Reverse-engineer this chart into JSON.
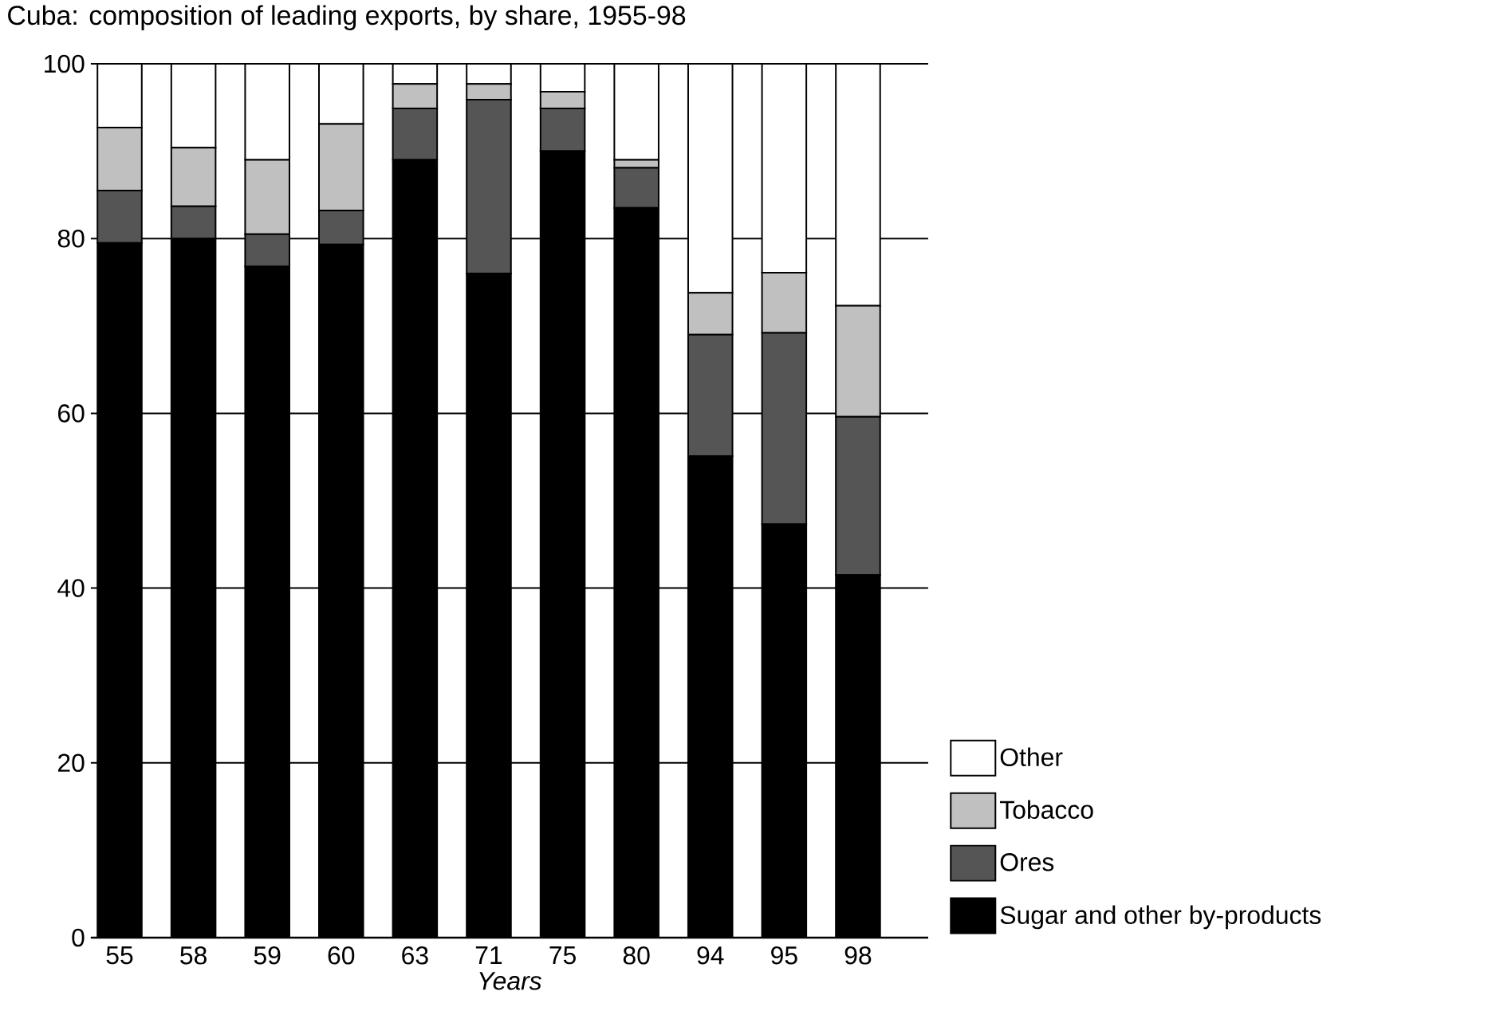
{
  "chart_data": {
    "type": "bar",
    "stacked": true,
    "title": "Cuba: composition of leading exports, by share, 1955-98",
    "xlabel": "Years",
    "categories": [
      "55",
      "58",
      "59",
      "60",
      "63",
      "71",
      "75",
      "80",
      "94",
      "95",
      "98"
    ],
    "series": [
      {
        "name": "Sugar and other by-products",
        "color": "#000000",
        "values": [
          79.5,
          80.0,
          76.8,
          79.3,
          89.0,
          76.0,
          90.0,
          83.5,
          55.1,
          47.3,
          41.5
        ]
      },
      {
        "name": "Ores",
        "color": "#555555",
        "values": [
          6.0,
          3.7,
          3.7,
          3.9,
          5.9,
          19.9,
          4.9,
          4.6,
          13.9,
          21.9,
          18.1
        ]
      },
      {
        "name": "Tobacco",
        "color": "#c0c0c0",
        "values": [
          7.2,
          6.7,
          8.5,
          9.9,
          2.8,
          1.8,
          1.9,
          0.9,
          4.8,
          6.9,
          12.7
        ]
      },
      {
        "name": "Other",
        "color": "#ffffff",
        "values": [
          7.3,
          9.6,
          11.0,
          6.9,
          2.3,
          2.3,
          3.2,
          11.0,
          26.2,
          23.9,
          27.7
        ]
      }
    ],
    "ylim": [
      0,
      100
    ],
    "yticks": [
      0,
      20,
      40,
      60,
      80,
      100
    ],
    "grid": "y",
    "legend": "bottom right"
  }
}
